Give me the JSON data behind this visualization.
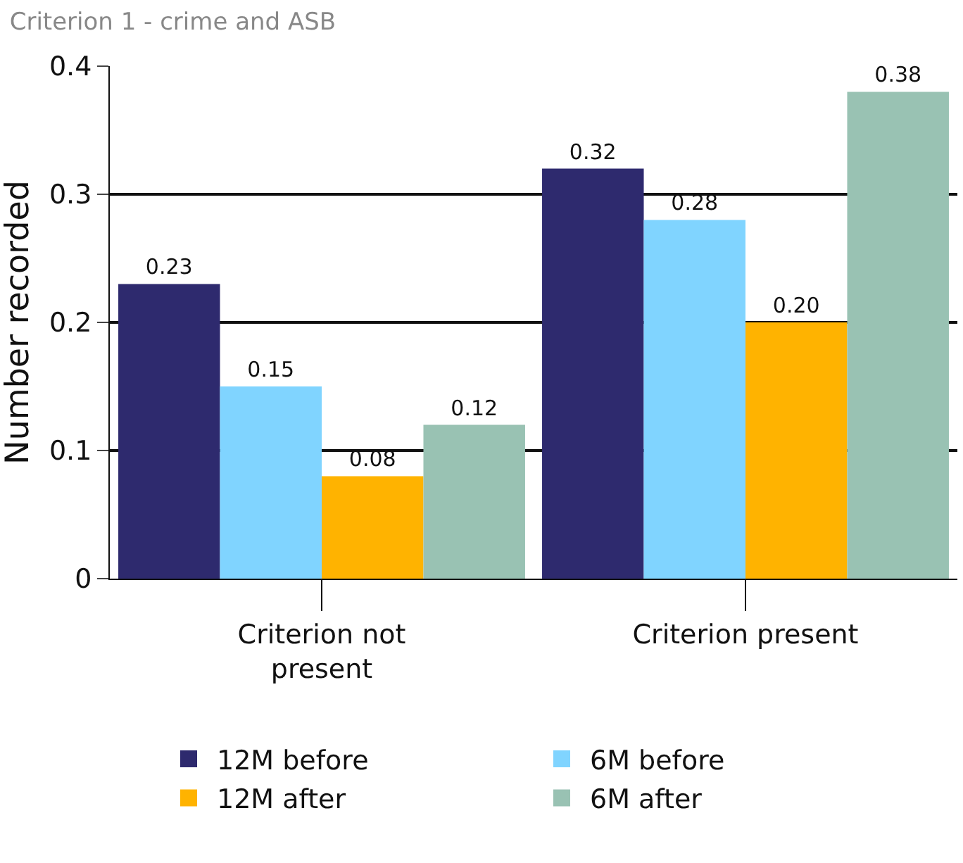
{
  "chart_data": {
    "type": "bar",
    "title": "Criterion 1 - crime and ASB",
    "ylabel": "Number recorded",
    "categories": [
      "Criterion not present",
      "Criterion present"
    ],
    "series": [
      {
        "name": "12M before",
        "color": "#2e2a6e",
        "values": [
          0.23,
          0.32
        ]
      },
      {
        "name": "6M before",
        "color": "#80d4ff",
        "values": [
          0.15,
          0.28
        ]
      },
      {
        "name": "12M after",
        "color": "#ffb300",
        "values": [
          0.08,
          0.2
        ]
      },
      {
        "name": "6M after",
        "color": "#99c2b3",
        "values": [
          0.12,
          0.38
        ]
      }
    ],
    "value_labels": [
      [
        "0.23",
        "0.32"
      ],
      [
        "0.15",
        "0.28"
      ],
      [
        "0.08",
        "0.20"
      ],
      [
        "0.12",
        "0.38"
      ]
    ],
    "ylim": [
      0,
      0.4
    ],
    "yticks": [
      0,
      0.1,
      0.2,
      0.3,
      0.4
    ],
    "grid": "y",
    "legend": "bottom"
  }
}
